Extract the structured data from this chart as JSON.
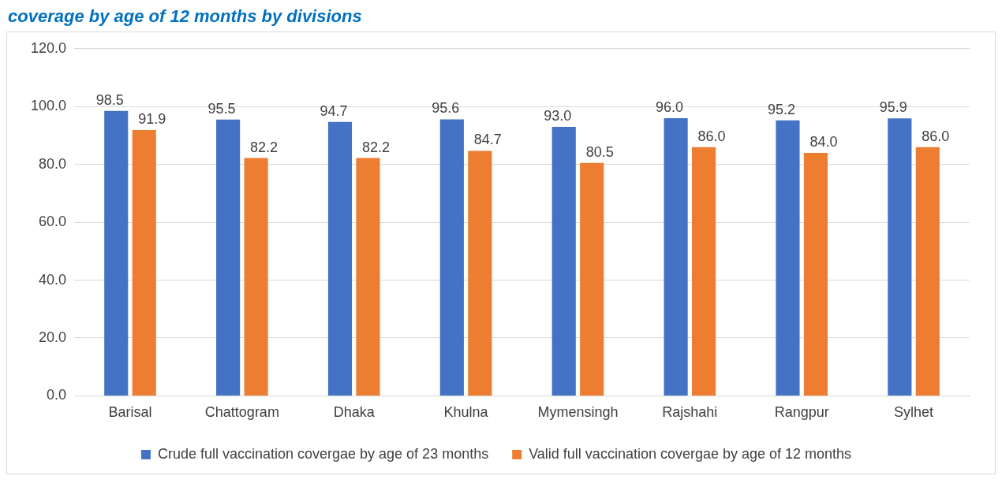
{
  "chart_data": {
    "type": "bar",
    "title": "coverage by age of 12 months by divisions",
    "categories": [
      "Barisal",
      "Chattogram",
      "Dhaka",
      "Khulna",
      "Mymensingh",
      "Rajshahi",
      "Rangpur",
      "Sylhet"
    ],
    "series": [
      {
        "name": "Crude full vaccination covergae by age of 23 months",
        "color": "#4472c4",
        "values": [
          98.5,
          95.5,
          94.7,
          95.6,
          93.0,
          96.0,
          95.2,
          95.9
        ],
        "value_labels": [
          "98.5",
          "95.5",
          "94.7",
          "95.6",
          "93.0",
          "96.0",
          "95.2",
          "95.9"
        ]
      },
      {
        "name": "Valid full vaccination covergae by age of 12 months",
        "color": "#ed7d31",
        "values": [
          91.9,
          82.2,
          82.2,
          84.7,
          80.5,
          86.0,
          84.0,
          86.0
        ],
        "value_labels": [
          "91.9",
          "82.2",
          "82.2",
          "84.7",
          "80.5",
          "86.0",
          "84.0",
          "86.0"
        ]
      }
    ],
    "ylim": [
      0,
      120
    ],
    "yticks": [
      {
        "value": 0,
        "label": "0.0"
      },
      {
        "value": 20,
        "label": "20.0"
      },
      {
        "value": 40,
        "label": "40.0"
      },
      {
        "value": 60,
        "label": "60.0"
      },
      {
        "value": 80,
        "label": "80.0"
      },
      {
        "value": 100,
        "label": "100.0"
      },
      {
        "value": 120,
        "label": "120.0"
      }
    ],
    "grid": "y",
    "legend": "bottom"
  }
}
